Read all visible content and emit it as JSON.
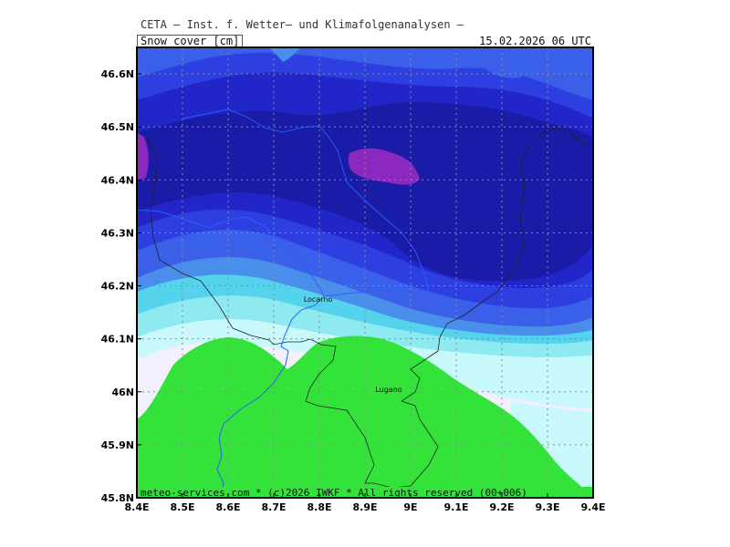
{
  "header": {
    "title": "CETA — Inst. f. Wetter— und Klimafolgenanalysen —",
    "parameter": "Snow_cover_[cm]",
    "datetime": "15.02.2026 06 UTC"
  },
  "footer": {
    "text": "meteo-services.com * (c)2026 IWKF * All rights reserved (00+006)"
  },
  "map": {
    "lon_range": [
      8.4,
      9.4
    ],
    "lat_range": [
      45.8,
      46.65
    ],
    "grid": true,
    "x_ticks": [
      {
        "value": 8.4,
        "label": "8.4E"
      },
      {
        "value": 8.5,
        "label": "8.5E"
      },
      {
        "value": 8.6,
        "label": "8.6E"
      },
      {
        "value": 8.7,
        "label": "8.7E"
      },
      {
        "value": 8.8,
        "label": "8.8E"
      },
      {
        "value": 8.9,
        "label": "8.9E"
      },
      {
        "value": 9.0,
        "label": "9E"
      },
      {
        "value": 9.1,
        "label": "9.1E"
      },
      {
        "value": 9.2,
        "label": "9.2E"
      },
      {
        "value": 9.3,
        "label": "9.3E"
      },
      {
        "value": 9.4,
        "label": "9.4E"
      }
    ],
    "y_ticks": [
      {
        "value": 46.6,
        "label": "46.6N"
      },
      {
        "value": 46.5,
        "label": "46.5N"
      },
      {
        "value": 46.4,
        "label": "46.4N"
      },
      {
        "value": 46.3,
        "label": "46.3N"
      },
      {
        "value": 46.2,
        "label": "46.2N"
      },
      {
        "value": 46.1,
        "label": "46.1N"
      },
      {
        "value": 46.0,
        "label": "46N"
      },
      {
        "value": 45.9,
        "label": "45.9N"
      },
      {
        "value": 45.8,
        "label": "45.8N"
      }
    ],
    "cities": [
      {
        "name": "Locarno",
        "lon": 8.797,
        "lat": 46.17
      },
      {
        "name": "Lugano",
        "lon": 8.952,
        "lat": 46.0
      }
    ],
    "colors": {
      "snow_free_green": "#33e33a",
      "light_white": "#f2f0fc",
      "light_cyan": "#c8f8fa",
      "cyan": "#8ee9f0",
      "mid_cyan": "#55d2ec",
      "steel_blue": "#4a8eec",
      "blue": "#3a60ea",
      "royal_blue": "#2d3fe0",
      "deep_blue": "#2226c8",
      "navy": "#1a1ba6",
      "purple": "#8a28c0"
    }
  }
}
